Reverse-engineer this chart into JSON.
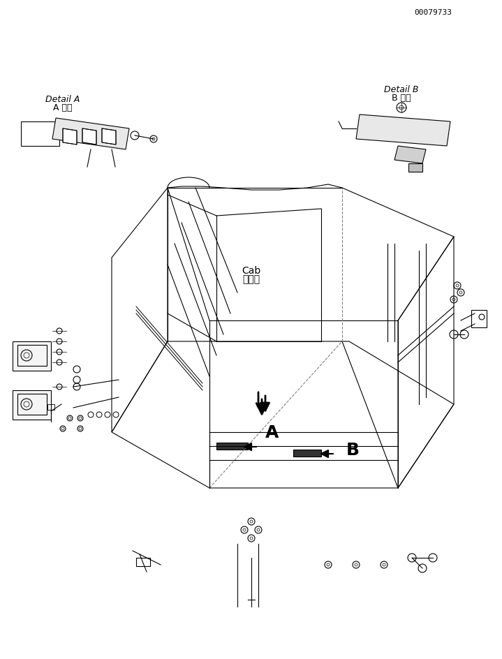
{
  "title": "",
  "background_color": "#ffffff",
  "line_color": "#000000",
  "cab_label_japanese": "キャブ",
  "cab_label_english": "Cab",
  "detail_a_japanese": "A 詳細",
  "detail_a_english": "Detail A",
  "detail_b_japanese": "B 詳細",
  "detail_b_english": "Detail B",
  "part_number": "00079733",
  "label_A": "A",
  "label_B": "B"
}
